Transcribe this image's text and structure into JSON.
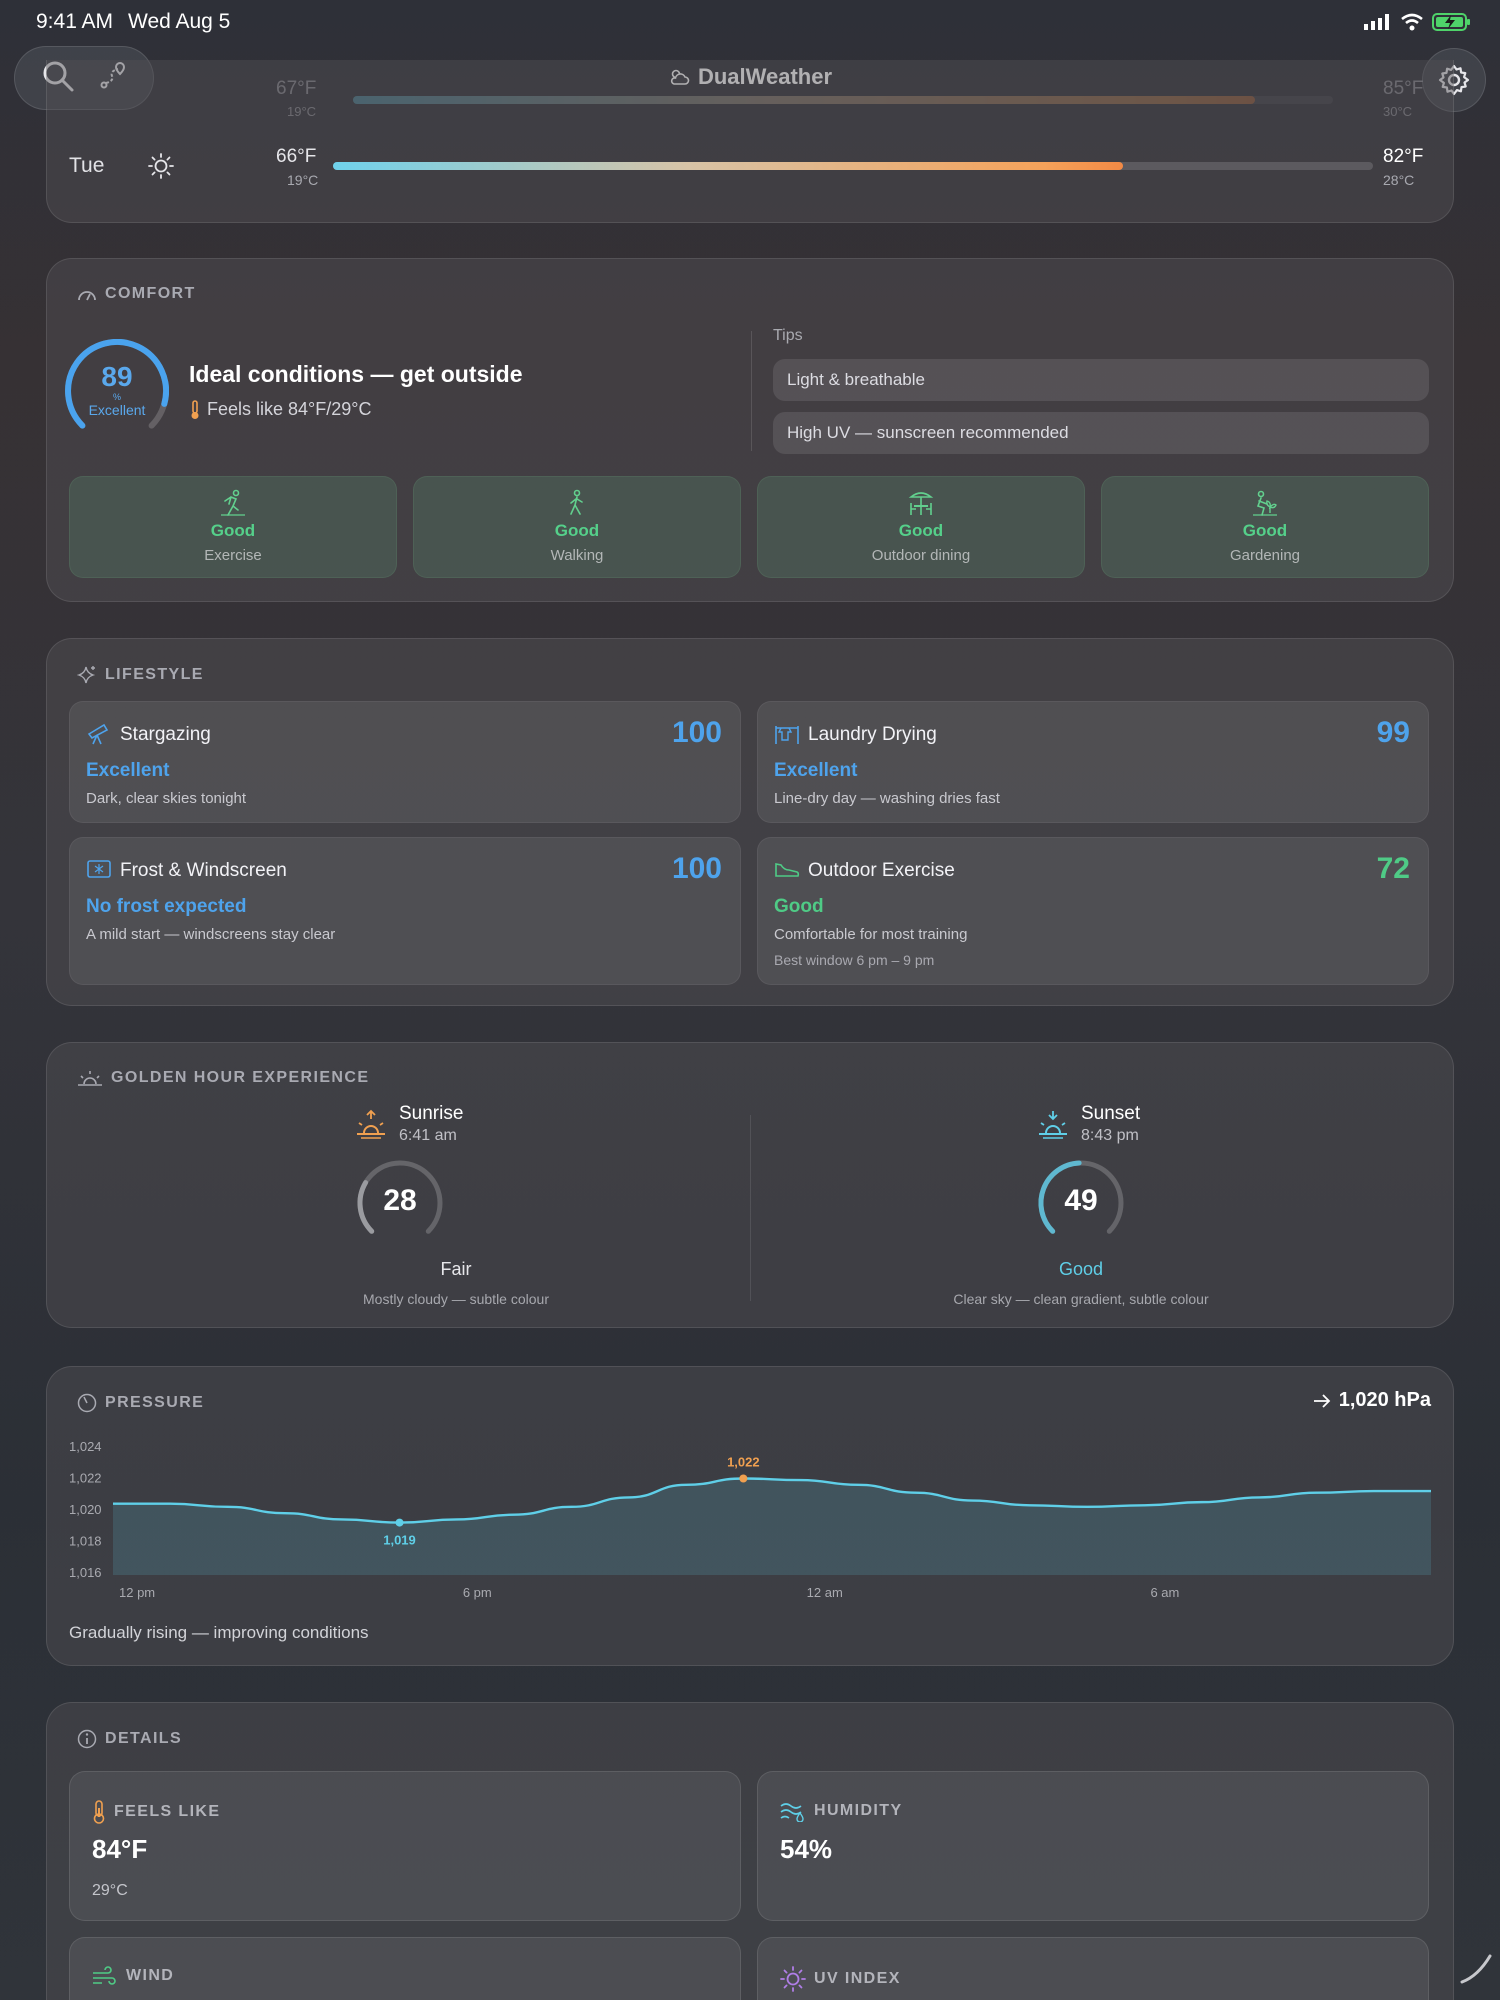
{
  "status_bar": {
    "time": "9:41 AM",
    "date": "Wed Aug 5"
  },
  "header": {
    "title": "DualWeather",
    "icons": [
      "search-icon",
      "route-icon",
      "gear-icon",
      "cloud-sun-icon"
    ]
  },
  "forecast": {
    "ghost_row": {
      "low_f": "67°F",
      "low_c": "19°C",
      "high_f": "85°F",
      "high_c": "30°C"
    },
    "row": {
      "day": "Tue",
      "low_f": "66°F",
      "low_c": "19°C",
      "high_f": "82°F",
      "high_c": "28°C",
      "fill": 0.76
    }
  },
  "comfort": {
    "label": "COMFORT",
    "score": "89",
    "unit": "%",
    "rating": "Excellent",
    "score_fraction": 0.89,
    "headline": "Ideal conditions — get outside",
    "feels_like": "Feels like 84°F/29°C",
    "tips_label": "Tips",
    "tips": [
      "Light & breathable",
      "High UV — sunscreen recommended"
    ],
    "activities": [
      {
        "rating": "Good",
        "name": "Exercise"
      },
      {
        "rating": "Good",
        "name": "Walking"
      },
      {
        "rating": "Good",
        "name": "Outdoor dining"
      },
      {
        "rating": "Good",
        "name": "Gardening"
      }
    ]
  },
  "lifestyle": {
    "label": "LIFESTYLE",
    "items": [
      {
        "title": "Stargazing",
        "score": "100",
        "status": "Excellent",
        "desc": "Dark, clear skies tonight",
        "extra": ""
      },
      {
        "title": "Laundry Drying",
        "score": "99",
        "status": "Excellent",
        "desc": "Line-dry day — washing dries fast",
        "extra": ""
      },
      {
        "title": "Frost & Windscreen",
        "score": "100",
        "status": "No frost expected",
        "desc": "A mild start — windscreens stay clear",
        "extra": ""
      },
      {
        "title": "Outdoor Exercise",
        "score": "72",
        "status": "Good",
        "desc": "Comfortable for most training",
        "extra": "Best window 6 pm – 9 pm"
      }
    ],
    "colors": {
      "blue": "#4ea3ec",
      "green": "#4fcb86"
    }
  },
  "golden_hour": {
    "label": "GOLDEN HOUR EXPERIENCE",
    "sunrise": {
      "title": "Sunrise",
      "time": "6:41 am",
      "score": "28",
      "fraction": 0.28,
      "rating": "Fair",
      "desc": "Mostly cloudy — subtle colour"
    },
    "sunset": {
      "title": "Sunset",
      "time": "8:43 pm",
      "score": "49",
      "fraction": 0.49,
      "rating": "Good",
      "desc": "Clear sky — clean gradient, subtle colour"
    }
  },
  "pressure": {
    "label": "PRESSURE",
    "current": "1,020 hPa",
    "summary": "Gradually rising — improving conditions",
    "min_label": "1,019",
    "max_label": "1,022"
  },
  "chart_data": {
    "type": "area",
    "title": "",
    "xlabel": "",
    "ylabel": "",
    "x_tick_labels": [
      "12 pm",
      "6 pm",
      "12 am",
      "6 am"
    ],
    "y_tick_labels": [
      "1,024",
      "1,022",
      "1,020",
      "1,018",
      "1,016"
    ],
    "ylim": [
      1016,
      1024
    ],
    "x_hours_from_noon": [
      0,
      1,
      2,
      3,
      4,
      5,
      6,
      7,
      8,
      9,
      10,
      11,
      12,
      13,
      14,
      15,
      16,
      17,
      18,
      19,
      20,
      21,
      22,
      23
    ],
    "series": [
      {
        "values": [
          1020.4,
          1020.4,
          1020.2,
          1019.8,
          1019.4,
          1019.2,
          1019.4,
          1019.7,
          1020.2,
          1020.8,
          1021.6,
          1022.0,
          1021.9,
          1021.6,
          1021.1,
          1020.6,
          1020.3,
          1020.2,
          1020.3,
          1020.5,
          1020.8,
          1021.1,
          1021.2,
          1021.2
        ]
      }
    ],
    "annotations": [
      {
        "x": 5,
        "y": 1019.2,
        "label": "1,019"
      },
      {
        "x": 11,
        "y": 1022.0,
        "label": "1,022"
      }
    ],
    "colors": {
      "line": "#5fcfe8",
      "high_marker": "#f0a050"
    }
  },
  "details": {
    "label": "DETAILS",
    "items": [
      {
        "label": "FEELS LIKE",
        "value": "84°F",
        "sub": "29°C"
      },
      {
        "label": "HUMIDITY",
        "value": "54%",
        "sub": ""
      },
      {
        "label": "WIND",
        "value": "",
        "sub": ""
      },
      {
        "label": "UV INDEX",
        "value": "",
        "sub": ""
      }
    ]
  }
}
